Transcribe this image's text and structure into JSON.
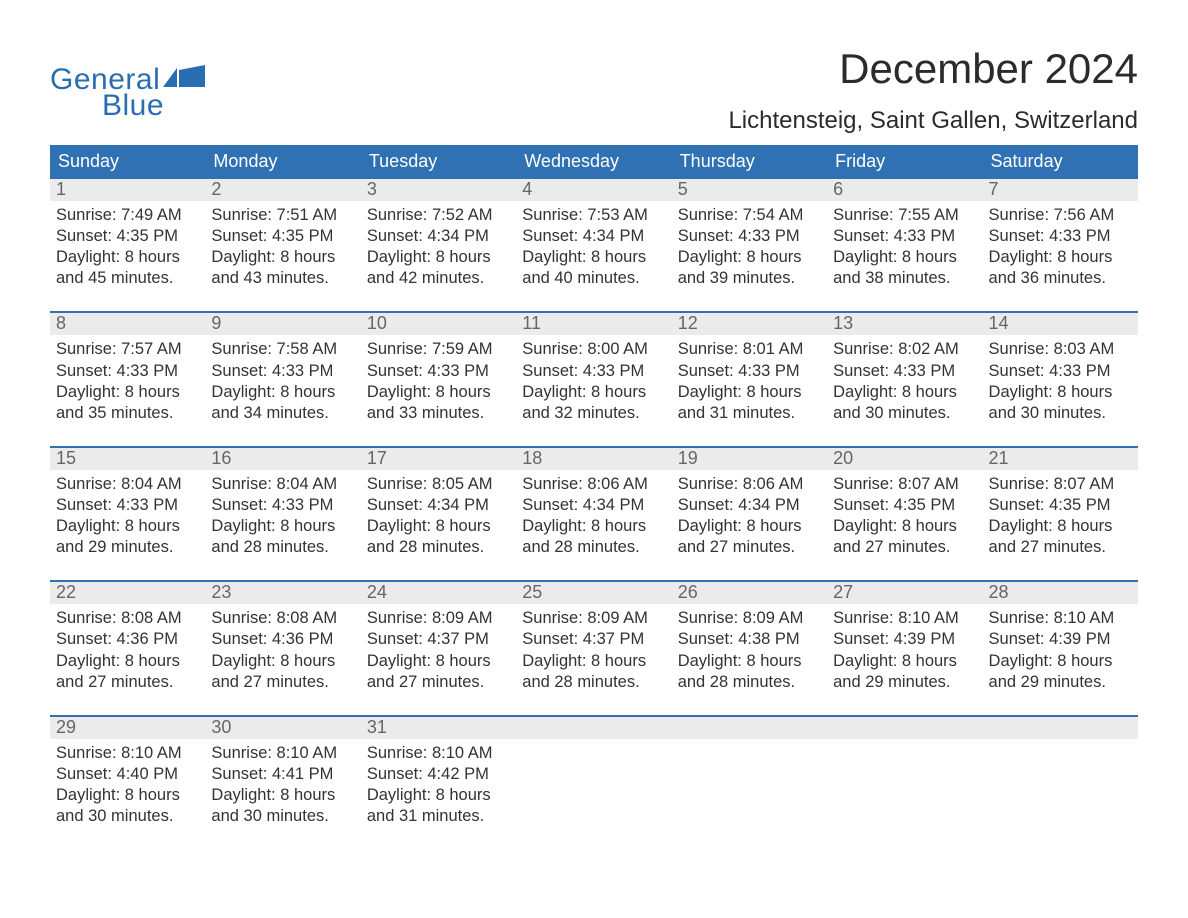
{
  "logo": {
    "general": "General",
    "blue": "Blue"
  },
  "title": "December 2024",
  "location": "Lichtensteig, Saint Gallen, Switzerland",
  "colors": {
    "header_bg": "#2f71b3",
    "header_text": "#ffffff",
    "daynum_bg": "#ebebeb",
    "daynum_text": "#666666",
    "body_text": "#333333",
    "logo_color": "#2a6db0",
    "rule_color": "#2f71b3"
  },
  "dow": [
    "Sunday",
    "Monday",
    "Tuesday",
    "Wednesday",
    "Thursday",
    "Friday",
    "Saturday"
  ],
  "weeks": [
    [
      {
        "n": "1",
        "sr": "7:49 AM",
        "ss": "4:35 PM",
        "dl1": "8 hours",
        "dl2": "and 45 minutes."
      },
      {
        "n": "2",
        "sr": "7:51 AM",
        "ss": "4:35 PM",
        "dl1": "8 hours",
        "dl2": "and 43 minutes."
      },
      {
        "n": "3",
        "sr": "7:52 AM",
        "ss": "4:34 PM",
        "dl1": "8 hours",
        "dl2": "and 42 minutes."
      },
      {
        "n": "4",
        "sr": "7:53 AM",
        "ss": "4:34 PM",
        "dl1": "8 hours",
        "dl2": "and 40 minutes."
      },
      {
        "n": "5",
        "sr": "7:54 AM",
        "ss": "4:33 PM",
        "dl1": "8 hours",
        "dl2": "and 39 minutes."
      },
      {
        "n": "6",
        "sr": "7:55 AM",
        "ss": "4:33 PM",
        "dl1": "8 hours",
        "dl2": "and 38 minutes."
      },
      {
        "n": "7",
        "sr": "7:56 AM",
        "ss": "4:33 PM",
        "dl1": "8 hours",
        "dl2": "and 36 minutes."
      }
    ],
    [
      {
        "n": "8",
        "sr": "7:57 AM",
        "ss": "4:33 PM",
        "dl1": "8 hours",
        "dl2": "and 35 minutes."
      },
      {
        "n": "9",
        "sr": "7:58 AM",
        "ss": "4:33 PM",
        "dl1": "8 hours",
        "dl2": "and 34 minutes."
      },
      {
        "n": "10",
        "sr": "7:59 AM",
        "ss": "4:33 PM",
        "dl1": "8 hours",
        "dl2": "and 33 minutes."
      },
      {
        "n": "11",
        "sr": "8:00 AM",
        "ss": "4:33 PM",
        "dl1": "8 hours",
        "dl2": "and 32 minutes."
      },
      {
        "n": "12",
        "sr": "8:01 AM",
        "ss": "4:33 PM",
        "dl1": "8 hours",
        "dl2": "and 31 minutes."
      },
      {
        "n": "13",
        "sr": "8:02 AM",
        "ss": "4:33 PM",
        "dl1": "8 hours",
        "dl2": "and 30 minutes."
      },
      {
        "n": "14",
        "sr": "8:03 AM",
        "ss": "4:33 PM",
        "dl1": "8 hours",
        "dl2": "and 30 minutes."
      }
    ],
    [
      {
        "n": "15",
        "sr": "8:04 AM",
        "ss": "4:33 PM",
        "dl1": "8 hours",
        "dl2": "and 29 minutes."
      },
      {
        "n": "16",
        "sr": "8:04 AM",
        "ss": "4:33 PM",
        "dl1": "8 hours",
        "dl2": "and 28 minutes."
      },
      {
        "n": "17",
        "sr": "8:05 AM",
        "ss": "4:34 PM",
        "dl1": "8 hours",
        "dl2": "and 28 minutes."
      },
      {
        "n": "18",
        "sr": "8:06 AM",
        "ss": "4:34 PM",
        "dl1": "8 hours",
        "dl2": "and 28 minutes."
      },
      {
        "n": "19",
        "sr": "8:06 AM",
        "ss": "4:34 PM",
        "dl1": "8 hours",
        "dl2": "and 27 minutes."
      },
      {
        "n": "20",
        "sr": "8:07 AM",
        "ss": "4:35 PM",
        "dl1": "8 hours",
        "dl2": "and 27 minutes."
      },
      {
        "n": "21",
        "sr": "8:07 AM",
        "ss": "4:35 PM",
        "dl1": "8 hours",
        "dl2": "and 27 minutes."
      }
    ],
    [
      {
        "n": "22",
        "sr": "8:08 AM",
        "ss": "4:36 PM",
        "dl1": "8 hours",
        "dl2": "and 27 minutes."
      },
      {
        "n": "23",
        "sr": "8:08 AM",
        "ss": "4:36 PM",
        "dl1": "8 hours",
        "dl2": "and 27 minutes."
      },
      {
        "n": "24",
        "sr": "8:09 AM",
        "ss": "4:37 PM",
        "dl1": "8 hours",
        "dl2": "and 27 minutes."
      },
      {
        "n": "25",
        "sr": "8:09 AM",
        "ss": "4:37 PM",
        "dl1": "8 hours",
        "dl2": "and 28 minutes."
      },
      {
        "n": "26",
        "sr": "8:09 AM",
        "ss": "4:38 PM",
        "dl1": "8 hours",
        "dl2": "and 28 minutes."
      },
      {
        "n": "27",
        "sr": "8:10 AM",
        "ss": "4:39 PM",
        "dl1": "8 hours",
        "dl2": "and 29 minutes."
      },
      {
        "n": "28",
        "sr": "8:10 AM",
        "ss": "4:39 PM",
        "dl1": "8 hours",
        "dl2": "and 29 minutes."
      }
    ],
    [
      {
        "n": "29",
        "sr": "8:10 AM",
        "ss": "4:40 PM",
        "dl1": "8 hours",
        "dl2": "and 30 minutes."
      },
      {
        "n": "30",
        "sr": "8:10 AM",
        "ss": "4:41 PM",
        "dl1": "8 hours",
        "dl2": "and 30 minutes."
      },
      {
        "n": "31",
        "sr": "8:10 AM",
        "ss": "4:42 PM",
        "dl1": "8 hours",
        "dl2": "and 31 minutes."
      },
      null,
      null,
      null,
      null
    ]
  ],
  "labels": {
    "sunrise": "Sunrise: ",
    "sunset": "Sunset: ",
    "daylight": "Daylight: "
  }
}
